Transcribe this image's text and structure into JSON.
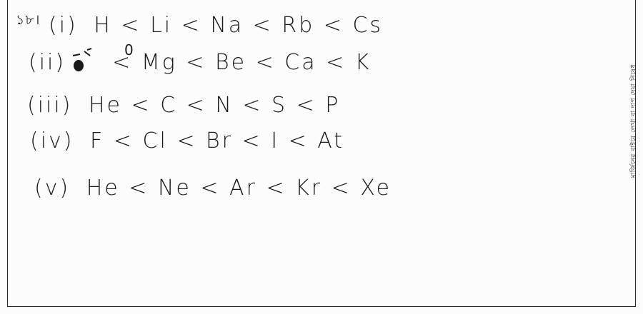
{
  "answer": {
    "question_number": "১৮।",
    "lines": [
      {
        "label": "(i)",
        "text": "H < Li < Na < Rb < Cs"
      },
      {
        "label": "(ii)",
        "text": "< Mg < Be < Ca < K"
      },
      {
        "label": "(iii)",
        "text": "He < C < N < S < P"
      },
      {
        "label": "(iv)",
        "text": "F < Cl < Br < I < At"
      },
      {
        "label": "(v)",
        "text": "He < Ne < Ar < Kr < Xe"
      }
    ],
    "line2_overwrite": "0"
  },
  "margin_note": "মার্জিনের বাইরে লেখা বা দাগ দেয়া নিষেধ"
}
